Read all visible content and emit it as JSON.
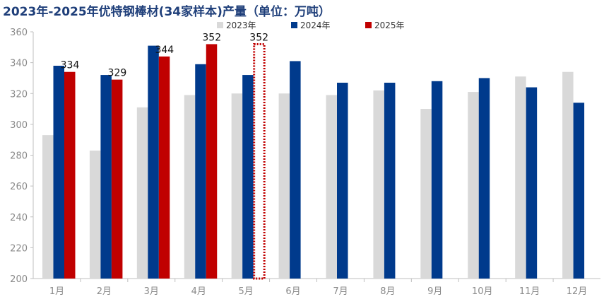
{
  "chart_data": {
    "type": "bar",
    "title": "2023年-2025年优特钢棒材(34家样本)产量（单位：万吨）",
    "categories": [
      "1月",
      "2月",
      "3月",
      "4月",
      "5月",
      "6月",
      "7月",
      "8月",
      "9月",
      "10月",
      "11月",
      "12月"
    ],
    "series": [
      {
        "name": "2023年",
        "color": "#d9d9d9",
        "values": [
          293,
          283,
          311,
          319,
          320,
          320,
          319,
          322,
          310,
          321,
          331,
          334
        ]
      },
      {
        "name": "2024年",
        "color": "#003a8c",
        "values": [
          338,
          332,
          351,
          339,
          332,
          341,
          327,
          327,
          328,
          330,
          324,
          314
        ]
      },
      {
        "name": "2025年",
        "color": "#c00000",
        "values": [
          334,
          329,
          344,
          352,
          null,
          null,
          null,
          null,
          null,
          null,
          null,
          null
        ],
        "labels": [
          "334",
          "329",
          "344",
          "352",
          "",
          "",
          "",
          "",
          "",
          "",
          "",
          ""
        ]
      }
    ],
    "highlight": {
      "category": "5月",
      "value": 352,
      "label": "352",
      "style": "dotted-outline",
      "color": "#c00000"
    },
    "ylim": [
      200,
      360
    ],
    "yticks": [
      200,
      220,
      240,
      260,
      280,
      300,
      320,
      340,
      360
    ],
    "grid": false,
    "legend_position": "top"
  }
}
